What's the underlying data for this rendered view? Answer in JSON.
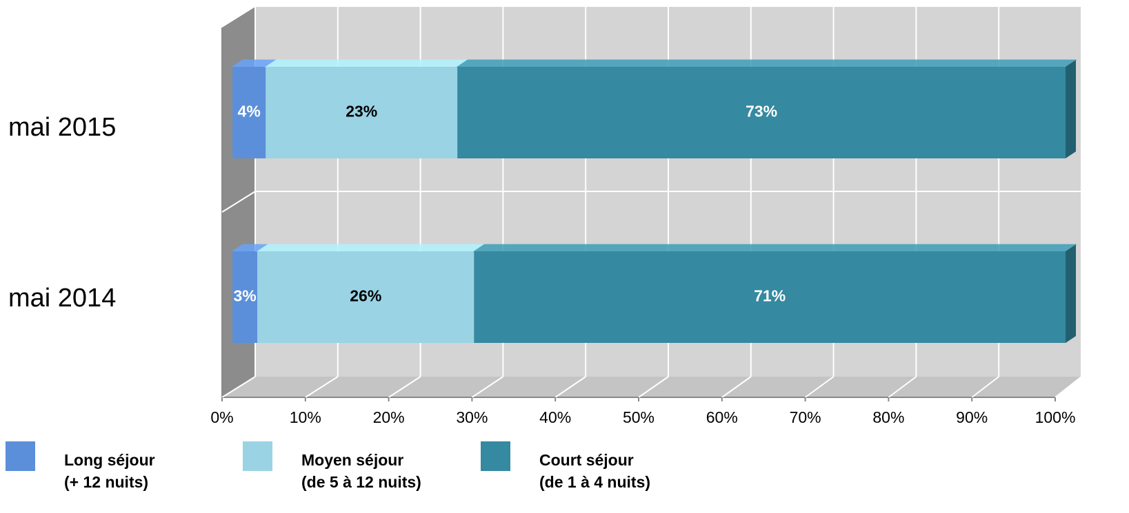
{
  "chart_data": {
    "type": "bar3d_stacked_horizontal",
    "categories": [
      "mai 2015",
      "mai 2014"
    ],
    "series": [
      {
        "name": "Long séjour\n(+ 12 nuits)",
        "color": "#5b8fd9",
        "label_color": "#ffffff",
        "values": [
          4,
          3
        ],
        "value_labels": [
          "4%",
          "3%"
        ]
      },
      {
        "name": "Moyen séjour\n(de 5 à 12 nuits)",
        "color": "#9ad3e4",
        "label_color": "#000000",
        "values": [
          23,
          26
        ],
        "value_labels": [
          "23%",
          "26%"
        ]
      },
      {
        "name": "Court séjour\n(de 1 à 4 nuits)",
        "color": "#3589a0",
        "label_color": "#ffffff",
        "values": [
          73,
          71
        ],
        "value_labels": [
          "73%",
          "71%"
        ]
      }
    ],
    "xlim": [
      0,
      100
    ],
    "xticks": [
      {
        "value": 0,
        "label": "0%"
      },
      {
        "value": 10,
        "label": "10%"
      },
      {
        "value": 20,
        "label": "20%"
      },
      {
        "value": 30,
        "label": "30%"
      },
      {
        "value": 40,
        "label": "40%"
      },
      {
        "value": 50,
        "label": "50%"
      },
      {
        "value": 60,
        "label": "60%"
      },
      {
        "value": 70,
        "label": "70%"
      },
      {
        "value": 80,
        "label": "80%"
      },
      {
        "value": 90,
        "label": "90%"
      },
      {
        "value": 100,
        "label": "100%"
      }
    ],
    "grid": true,
    "legend": "bottom"
  }
}
